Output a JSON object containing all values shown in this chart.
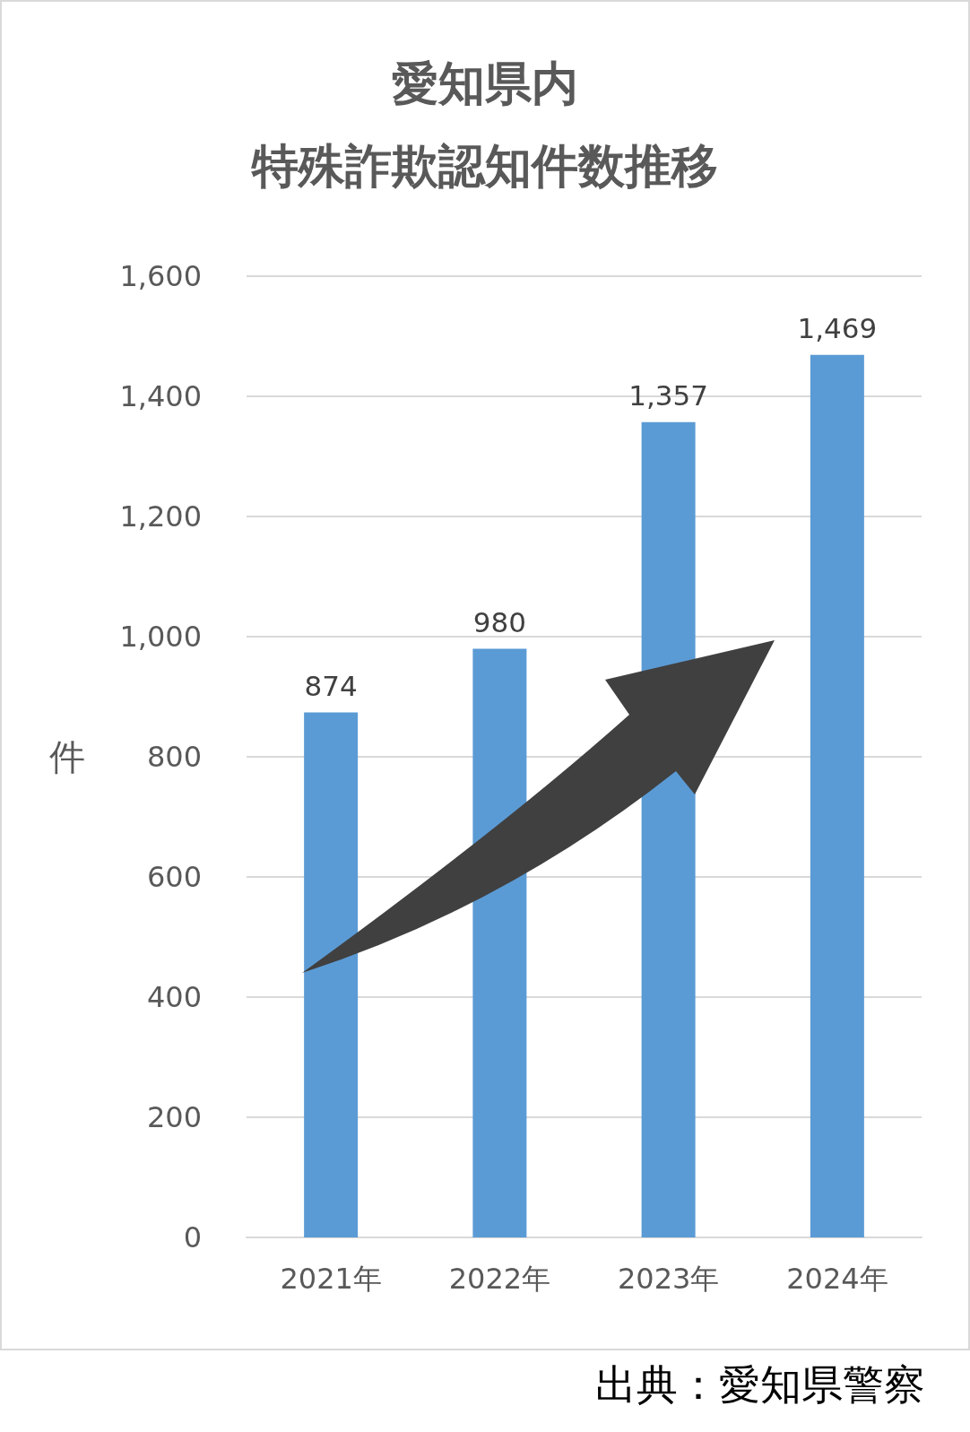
{
  "chart_data": {
    "type": "bar",
    "title": "愛知県内",
    "subtitle": "特殊詐欺認知件数推移",
    "ylabel": "件",
    "categories": [
      "2021年",
      "2022年",
      "2023年",
      "2024年"
    ],
    "values": [
      874,
      980,
      1357,
      1469
    ],
    "color": "#5b9bd5",
    "value_labels": [
      "874",
      "980",
      "1,357",
      "1,469"
    ],
    "ylim": [
      0,
      1600
    ],
    "yticks": [
      0,
      200,
      400,
      600,
      800,
      {
        "value": 1000,
        "label": "1,000"
      },
      {
        "value": 1200,
        "label": "1,200"
      },
      {
        "value": 1400,
        "label": "1,400"
      },
      {
        "value": 1600,
        "label": "1,600"
      }
    ],
    "grid": "y",
    "annotations": [
      "出典：愛知県警察"
    ]
  }
}
